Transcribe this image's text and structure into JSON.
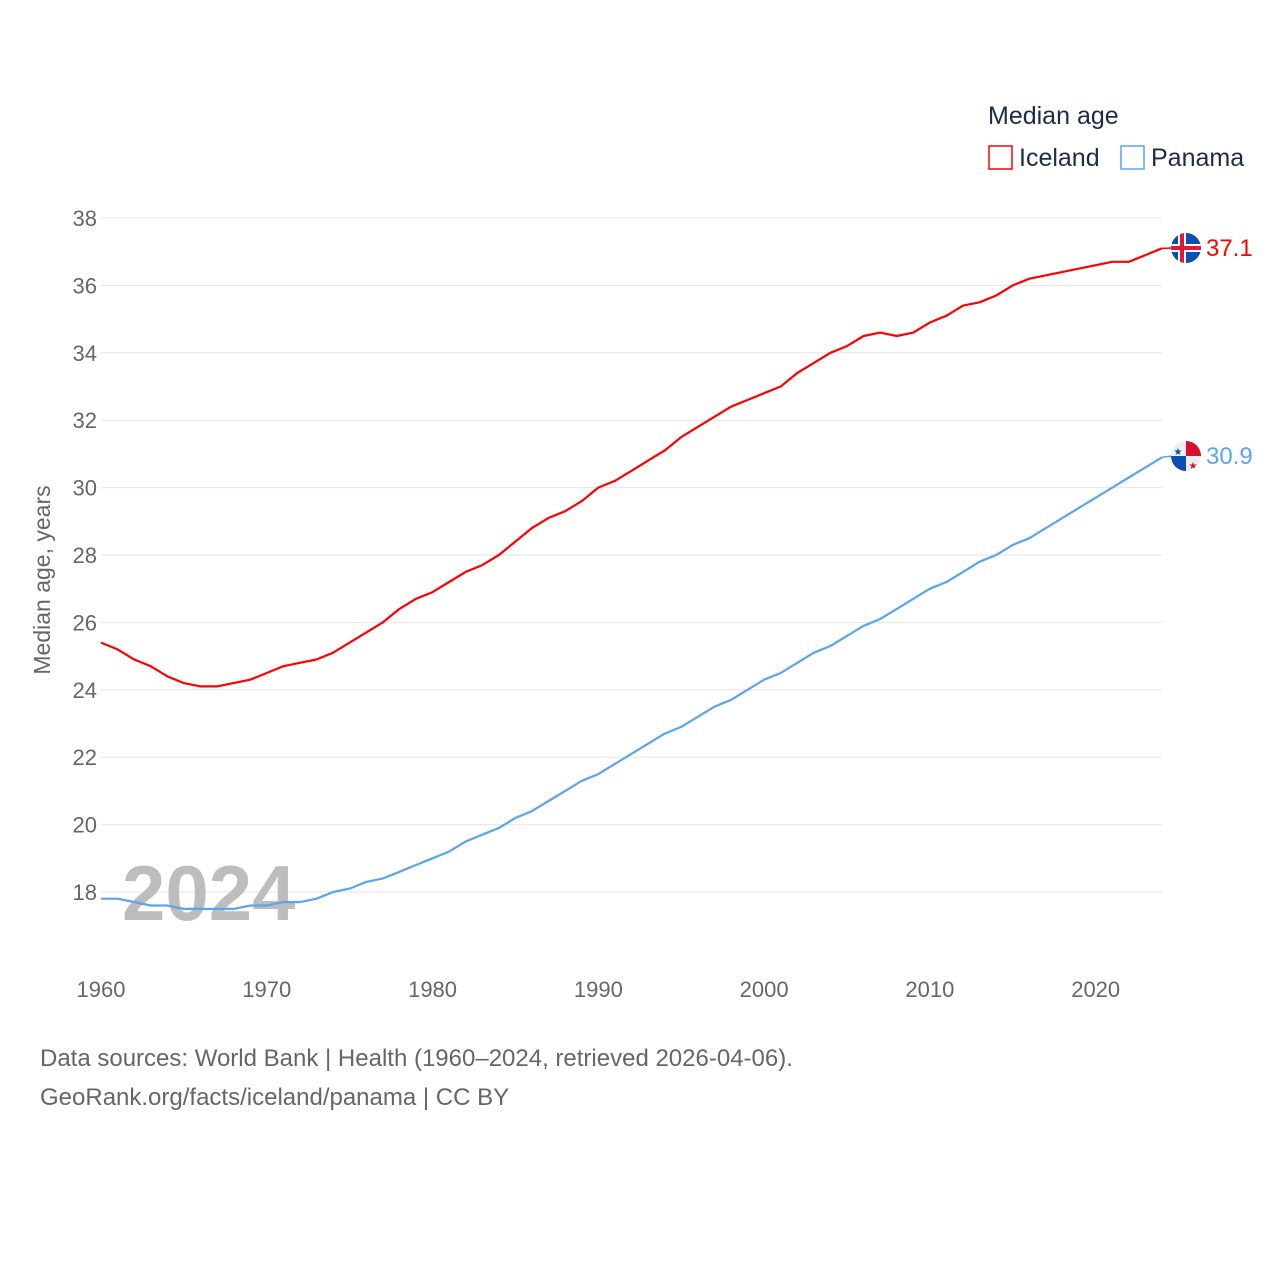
{
  "chart_data": {
    "type": "line",
    "title": "",
    "legend_title": "Median age",
    "legend_position": "top-right",
    "ylabel": "Median age, years",
    "xlabel": "",
    "xlim": [
      1960,
      2024
    ],
    "ylim": [
      16,
      38
    ],
    "xticks": [
      "1960",
      "1970",
      "1980",
      "1990",
      "2000",
      "2010",
      "2020"
    ],
    "yticks": [
      "18",
      "20",
      "22",
      "24",
      "26",
      "28",
      "30",
      "32",
      "34",
      "36",
      "38"
    ],
    "grid": true,
    "watermark_year": "2024",
    "x_start": 1960,
    "series": [
      {
        "name": "Iceland",
        "color": "#ff0000",
        "end_label": "37.1",
        "flag": "iceland-flag",
        "values": [
          25.4,
          25.2,
          24.9,
          24.7,
          24.4,
          24.2,
          24.1,
          24.1,
          24.2,
          24.3,
          24.5,
          24.7,
          24.8,
          24.9,
          25.1,
          25.4,
          25.7,
          26.0,
          26.4,
          26.7,
          26.9,
          27.2,
          27.5,
          27.7,
          28.0,
          28.4,
          28.8,
          29.1,
          29.3,
          29.6,
          30.0,
          30.2,
          30.5,
          30.8,
          31.1,
          31.5,
          31.8,
          32.1,
          32.4,
          32.6,
          32.8,
          33.0,
          33.4,
          33.7,
          34.0,
          34.2,
          34.5,
          34.6,
          34.5,
          34.6,
          34.9,
          35.1,
          35.4,
          35.5,
          35.7,
          36.0,
          36.2,
          36.3,
          36.4,
          36.5,
          36.6,
          36.7,
          36.7,
          36.9,
          37.1
        ]
      },
      {
        "name": "Panama",
        "color": "#5ba4ee",
        "end_label": "30.9",
        "flag": "panama-flag",
        "values": [
          17.8,
          17.8,
          17.7,
          17.6,
          17.6,
          17.5,
          17.5,
          17.5,
          17.5,
          17.6,
          17.6,
          17.7,
          17.7,
          17.8,
          18.0,
          18.1,
          18.3,
          18.4,
          18.6,
          18.8,
          19.0,
          19.2,
          19.5,
          19.7,
          19.9,
          20.2,
          20.4,
          20.7,
          21.0,
          21.3,
          21.5,
          21.8,
          22.1,
          22.4,
          22.7,
          22.9,
          23.2,
          23.5,
          23.7,
          24.0,
          24.3,
          24.5,
          24.8,
          25.1,
          25.3,
          25.6,
          25.9,
          26.1,
          26.4,
          26.7,
          27.0,
          27.2,
          27.5,
          27.8,
          28.0,
          28.3,
          28.5,
          28.8,
          29.1,
          29.4,
          29.7,
          30.0,
          30.3,
          30.6,
          30.9
        ]
      }
    ]
  },
  "footer": {
    "line1": "Data sources: World Bank | Health (1960–2024, retrieved 2026-04-06).",
    "line2": "GeoRank.org/facts/iceland/panama | CC BY"
  }
}
